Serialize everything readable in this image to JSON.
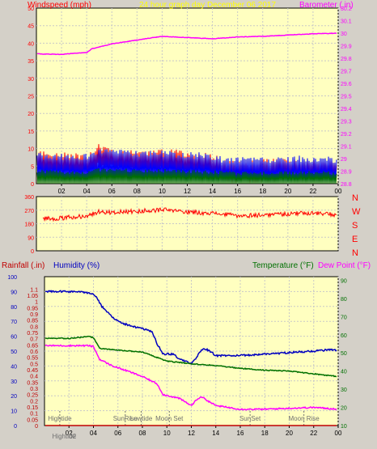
{
  "colors": {
    "panel": "#ffffc0",
    "grid": "#c8c8c8",
    "gust": "#ff0000",
    "avg": "#0000ff",
    "low": "#007000",
    "baro": "#ff00ff",
    "dir": "#ff0000",
    "humidity": "#0000c0",
    "temperature": "#007000",
    "dewpoint": "#ff00ff",
    "rain": "#c00000",
    "event": "#707070"
  },
  "chart_data": [
    {
      "type": "line",
      "title": "24 hour graph day   December 06 2017",
      "ylabel_left": "Windspeed (mph)",
      "ylabel_right": "Barometer (.in)",
      "x_ticks": [
        "02",
        "04",
        "06",
        "08",
        "10",
        "12",
        "14",
        "16",
        "18",
        "20",
        "22",
        "00"
      ],
      "x_range_hours": [
        0,
        24
      ],
      "ylim_left": [
        0,
        50
      ],
      "yticks_left": [
        "0",
        "5",
        "10",
        "15",
        "20",
        "25",
        "30",
        "35",
        "40",
        "45",
        "50"
      ],
      "ylim_right": [
        28.8,
        30.2
      ],
      "yticks_right": [
        "28.8",
        "28.9",
        "29",
        "29.1",
        "29.2",
        "29.3",
        "29.4",
        "29.5",
        "29.6",
        "29.7",
        "29.8",
        "29.9",
        "30",
        "30.1",
        "30.2"
      ],
      "grid": true,
      "series": [
        {
          "axis": "left",
          "band": [
            1.5,
            3.5
          ],
          "x": [
            0,
            2,
            4,
            4.5,
            5,
            6,
            8,
            10,
            12,
            13,
            14,
            15,
            16,
            18,
            20,
            22,
            24
          ],
          "values": [
            6,
            5.5,
            5,
            6,
            8,
            7,
            6,
            6.5,
            6,
            5.5,
            5,
            3.5,
            3,
            3.5,
            4,
            4,
            3.5
          ]
        },
        {
          "axis": "left",
          "band": [
            4,
            6
          ],
          "x": [
            0,
            2,
            4,
            4.5,
            5,
            6,
            8,
            10,
            12,
            13,
            14,
            15,
            16,
            18,
            20,
            22,
            24
          ],
          "values": [
            3,
            2.5,
            2.5,
            3.5,
            4.5,
            4,
            3.5,
            3.5,
            3,
            3,
            2.5,
            1.8,
            1.5,
            1.8,
            2,
            2,
            1.8
          ]
        },
        {
          "axis": "left",
          "band": [
            2,
            3
          ],
          "x": [
            0,
            2,
            4,
            5,
            6,
            8,
            10,
            12,
            14,
            16,
            18,
            20,
            22,
            24
          ],
          "values": [
            1,
            0.8,
            0.8,
            1.5,
            1.4,
            1.2,
            1.2,
            1,
            0.8,
            0.4,
            0.5,
            0.6,
            0.6,
            0.5
          ]
        },
        {
          "axis": "right",
          "x": [
            0,
            2,
            3,
            4,
            4.4,
            6,
            8,
            10,
            12,
            14,
            16,
            18,
            20,
            22,
            24
          ],
          "values": [
            29.835,
            29.83,
            29.84,
            29.845,
            29.875,
            29.915,
            29.945,
            29.975,
            29.965,
            29.955,
            29.97,
            29.975,
            29.985,
            29.995,
            30
          ]
        }
      ]
    },
    {
      "type": "line",
      "ylabel_right_compass": [
        "N",
        "W",
        "S",
        "E",
        "N"
      ],
      "ylim": [
        0,
        360
      ],
      "yticks": [
        "0",
        "90",
        "180",
        "270",
        "360"
      ],
      "x_range_hours": [
        0,
        24
      ],
      "grid": true,
      "series": [
        {
          "x": [
            0,
            2,
            3,
            4,
            5,
            6,
            8,
            10,
            12,
            14,
            16,
            18,
            20,
            22,
            24
          ],
          "values": [
            215,
            215,
            225,
            232,
            260,
            255,
            262,
            272,
            258,
            250,
            232,
            238,
            246,
            252,
            238
          ]
        }
      ]
    },
    {
      "type": "line",
      "ylabel_left_1": "Rainfall (.in)",
      "ylabel_left_2": "Humidity (%)",
      "ylabel_right_1": "Temperature (°F)",
      "ylabel_right_2": "Dew Point (°F)",
      "x_ticks": [
        "02",
        "04",
        "06",
        "08",
        "10",
        "12",
        "14",
        "16",
        "18",
        "20",
        "22",
        "00"
      ],
      "x_range_hours": [
        0,
        24
      ],
      "ylim_humidity": [
        0,
        100
      ],
      "yticks_humidity": [
        "0",
        "10",
        "20",
        "30",
        "40",
        "50",
        "60",
        "70",
        "80",
        "90",
        "100"
      ],
      "ylim_rain": [
        0,
        1.2
      ],
      "yticks_rain": [
        "0",
        "0.05",
        "0.1",
        "0.15",
        "0.2",
        "0.25",
        "0.3",
        "0.35",
        "0.4",
        "0.45",
        "0.5",
        "0.55",
        "0.6",
        "0.65",
        "0.7",
        "0.75",
        "0.8",
        "0.85",
        "0.9",
        "0.95",
        "1",
        "1.05",
        "1.1"
      ],
      "ylim_temp": [
        10,
        92
      ],
      "yticks_temp": [
        "10",
        "20",
        "30",
        "40",
        "50",
        "60",
        "70",
        "80",
        "90"
      ],
      "grid": true,
      "series": [
        {
          "axis": "humidity",
          "noise": 1.2,
          "x": [
            0,
            2.5,
            3.8,
            4.2,
            4.6,
            5,
            6,
            7,
            8,
            8.8,
            9.2,
            9.7,
            10.5,
            11,
            11.5,
            12,
            12.3,
            12.6,
            13,
            13.5,
            14,
            16,
            18,
            20,
            22,
            23.5,
            24
          ],
          "values": [
            90,
            90,
            89,
            87,
            81,
            77,
            70,
            67,
            65,
            63,
            55,
            48,
            48,
            45,
            43,
            42,
            44,
            48,
            52,
            50,
            47,
            47,
            48,
            49,
            50,
            51,
            50
          ]
        },
        {
          "axis": "temp",
          "noise": 0.5,
          "x": [
            0,
            2,
            3.6,
            4,
            4.5,
            6,
            8,
            9,
            10,
            12,
            14,
            16,
            18,
            20,
            22,
            24
          ],
          "values": [
            58,
            58,
            59,
            58.5,
            52.5,
            51.5,
            50.5,
            48,
            45.5,
            44,
            43,
            41.5,
            40.5,
            40,
            38.5,
            37
          ]
        },
        {
          "axis": "temp",
          "noise": 0.8,
          "x": [
            0,
            2,
            3.6,
            4,
            4.5,
            5.5,
            7,
            8,
            9.2,
            9.7,
            11,
            12,
            12.4,
            12.8,
            13.5,
            14,
            16,
            18,
            20,
            22,
            24
          ],
          "values": [
            54,
            54,
            54,
            53.5,
            46.5,
            43,
            39.5,
            37,
            33,
            27,
            25,
            21,
            24,
            26,
            23,
            21,
            19,
            19,
            19.5,
            20,
            19
          ]
        },
        {
          "axis": "rain",
          "x": [
            0,
            24
          ],
          "values": [
            0,
            0
          ]
        }
      ],
      "annotations": [
        {
          "label": "Hightide",
          "hour": 1.25
        },
        {
          "label": "SunRise",
          "hour": 6.6
        },
        {
          "label": "Lowtide",
          "hour": 7.9
        },
        {
          "label": "Moon Set",
          "hour": 10.2
        },
        {
          "label": "SunSet",
          "hour": 16.8
        },
        {
          "label": "Moon Rise",
          "hour": 21.2
        },
        {
          "label": "Hightide",
          "hour": 1.6,
          "below_axis": true
        },
        {
          "label": "02",
          "hour": 2.3,
          "below_axis": true
        }
      ]
    }
  ]
}
